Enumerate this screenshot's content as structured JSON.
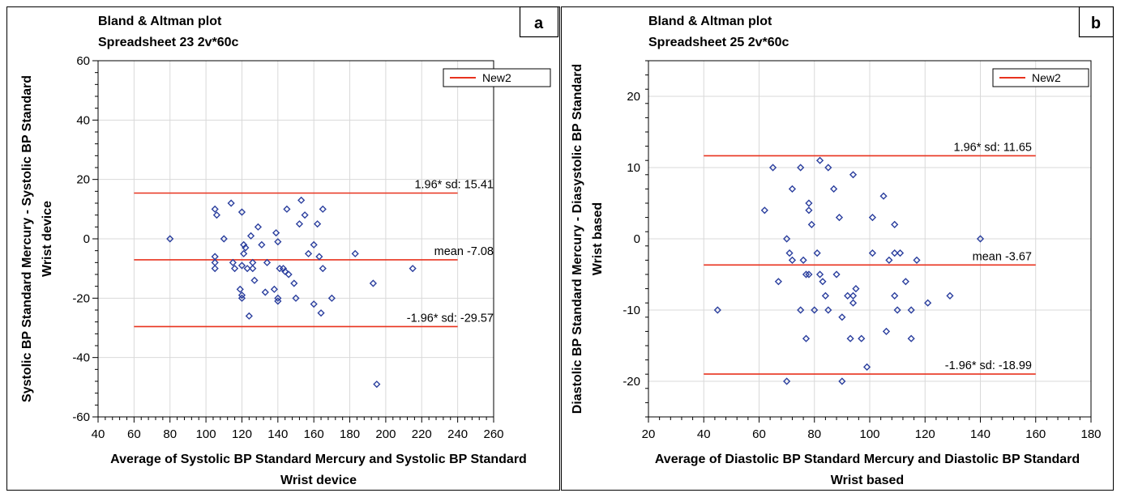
{
  "chart_data": [
    {
      "type": "scatter",
      "panel_label": "a",
      "title_lines": [
        "Bland & Altman plot",
        "Spreadsheet 23 2v*60c"
      ],
      "xlabel_lines": [
        "Average of Systolic BP Standard Mercury and Systolic BP Standard",
        "Wrist device"
      ],
      "ylabel_lines": [
        "Systolic BP Standard Mercury - Systolic BP Standard",
        "Wrist device"
      ],
      "xlim": [
        40,
        260
      ],
      "ylim": [
        -60,
        60
      ],
      "xticks": [
        40,
        60,
        80,
        100,
        120,
        140,
        160,
        180,
        200,
        220,
        240,
        260
      ],
      "yticks": [
        -60,
        -40,
        -20,
        0,
        20,
        40,
        60
      ],
      "grid": true,
      "legend": {
        "position": "top-right",
        "entries": [
          {
            "name": "New2",
            "color": "#e8321e"
          }
        ]
      },
      "line_color": "#e8321e",
      "marker_color": "#2b3f9e",
      "reference_lines": [
        {
          "label": "1.96* sd: 15.41",
          "y": 15.41,
          "x_range": [
            60,
            240
          ]
        },
        {
          "label": "mean -7.08",
          "y": -7.08,
          "x_range": [
            60,
            240
          ]
        },
        {
          "label": "-1.96* sd: -29.57",
          "y": -29.57,
          "x_range": [
            60,
            240
          ]
        }
      ],
      "points": [
        [
          80,
          0
        ],
        [
          105,
          10
        ],
        [
          106,
          8
        ],
        [
          105,
          -6
        ],
        [
          105,
          -8
        ],
        [
          105,
          -10
        ],
        [
          110,
          0
        ],
        [
          114,
          12
        ],
        [
          115,
          -8
        ],
        [
          116,
          -10
        ],
        [
          119,
          -17
        ],
        [
          120,
          -19
        ],
        [
          120,
          -20
        ],
        [
          120,
          9
        ],
        [
          120,
          -9
        ],
        [
          121,
          -5
        ],
        [
          121,
          -2
        ],
        [
          122,
          -3
        ],
        [
          123,
          -10
        ],
        [
          124,
          -26
        ],
        [
          125,
          1
        ],
        [
          126,
          -8
        ],
        [
          126,
          -10
        ],
        [
          127,
          -14
        ],
        [
          129,
          4
        ],
        [
          131,
          -2
        ],
        [
          133,
          -18
        ],
        [
          134,
          -8
        ],
        [
          138,
          -17
        ],
        [
          139,
          2
        ],
        [
          140,
          -1
        ],
        [
          140,
          -20
        ],
        [
          140,
          -21
        ],
        [
          141,
          -10
        ],
        [
          143,
          -10
        ],
        [
          144,
          -11
        ],
        [
          145,
          10
        ],
        [
          146,
          -12
        ],
        [
          149,
          -15
        ],
        [
          150,
          -20
        ],
        [
          152,
          5
        ],
        [
          153,
          13
        ],
        [
          155,
          8
        ],
        [
          157,
          -5
        ],
        [
          160,
          -2
        ],
        [
          160,
          -22
        ],
        [
          162,
          5
        ],
        [
          163,
          -6
        ],
        [
          164,
          -25
        ],
        [
          165,
          10
        ],
        [
          165,
          -10
        ],
        [
          170,
          -20
        ],
        [
          183,
          -5
        ],
        [
          193,
          -15
        ],
        [
          195,
          -49
        ],
        [
          215,
          -10
        ]
      ]
    },
    {
      "type": "scatter",
      "panel_label": "b",
      "title_lines": [
        "Bland & Altman plot",
        "Spreadsheet 25 2v*60c"
      ],
      "xlabel_lines": [
        "Average of Diastolic BP Standard Mercury and Diastolic BP Standard",
        "Wrist based"
      ],
      "ylabel_lines": [
        "Diastolic BP Standard Mercury - Diasystolic BP Standard",
        "Wrist based"
      ],
      "xlim": [
        20,
        180
      ],
      "ylim": [
        -25,
        25
      ],
      "xticks": [
        20,
        40,
        60,
        80,
        100,
        120,
        140,
        160,
        180
      ],
      "yticks": [
        -20,
        -10,
        0,
        10,
        20
      ],
      "grid": true,
      "legend": {
        "position": "top-right",
        "entries": [
          {
            "name": "New2",
            "color": "#e8321e"
          }
        ]
      },
      "line_color": "#e8321e",
      "marker_color": "#2b3f9e",
      "reference_lines": [
        {
          "label": "1.96* sd: 11.65",
          "y": 11.65,
          "x_range": [
            40,
            160
          ]
        },
        {
          "label": "mean -3.67",
          "y": -3.67,
          "x_range": [
            40,
            160
          ]
        },
        {
          "label": "-1.96* sd: -18.99",
          "y": -18.99,
          "x_range": [
            40,
            160
          ]
        }
      ],
      "points": [
        [
          45,
          -10
        ],
        [
          62,
          4
        ],
        [
          65,
          10
        ],
        [
          67,
          -6
        ],
        [
          70,
          0
        ],
        [
          70,
          -20
        ],
        [
          71,
          -2
        ],
        [
          72,
          -3
        ],
        [
          72,
          7
        ],
        [
          75,
          10
        ],
        [
          75,
          -10
        ],
        [
          76,
          -3
        ],
        [
          77,
          -5
        ],
        [
          77,
          -14
        ],
        [
          78,
          5
        ],
        [
          78,
          4
        ],
        [
          78,
          -5
        ],
        [
          79,
          2
        ],
        [
          80,
          -10
        ],
        [
          81,
          -2
        ],
        [
          82,
          11
        ],
        [
          82,
          -5
        ],
        [
          83,
          -6
        ],
        [
          84,
          -8
        ],
        [
          85,
          10
        ],
        [
          85,
          -10
        ],
        [
          87,
          7
        ],
        [
          88,
          -5
        ],
        [
          89,
          3
        ],
        [
          90,
          -20
        ],
        [
          90,
          -11
        ],
        [
          92,
          -8
        ],
        [
          93,
          -14
        ],
        [
          94,
          9
        ],
        [
          94,
          -8
        ],
        [
          94,
          -9
        ],
        [
          95,
          -7
        ],
        [
          97,
          -14
        ],
        [
          99,
          -18
        ],
        [
          101,
          -2
        ],
        [
          101,
          3
        ],
        [
          105,
          6
        ],
        [
          106,
          -13
        ],
        [
          107,
          -3
        ],
        [
          109,
          2
        ],
        [
          109,
          -2
        ],
        [
          109,
          -8
        ],
        [
          110,
          -10
        ],
        [
          111,
          -2
        ],
        [
          113,
          -6
        ],
        [
          115,
          -14
        ],
        [
          115,
          -10
        ],
        [
          117,
          -3
        ],
        [
          121,
          -9
        ],
        [
          129,
          -8
        ],
        [
          140,
          0
        ]
      ]
    }
  ]
}
